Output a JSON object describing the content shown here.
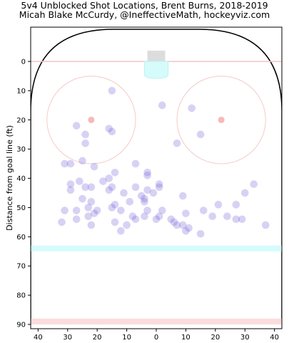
{
  "chart_data": {
    "type": "scatter",
    "title": "5v4 Unblocked Shot Locations, Brent Burns, 2018-2019",
    "subtitle": "Micah Blake McCurdy, @IneffectiveMath, hockeyviz.com",
    "ylabel": "Distance from goal line (ft)",
    "xlabel": "",
    "xlim": [
      42.5,
      -42.5
    ],
    "ylim": [
      0,
      90
    ],
    "x_ticks": [
      40,
      30,
      20,
      10,
      0,
      10,
      20,
      30,
      40
    ],
    "y_ticks": [
      0,
      10,
      20,
      30,
      40,
      50,
      60,
      70,
      80,
      90
    ],
    "grid": false,
    "point_color": "#6a5ad8",
    "points": [
      {
        "x": 15,
        "y": 10
      },
      {
        "x": -2,
        "y": 15
      },
      {
        "x": -12,
        "y": 16
      },
      {
        "x": 27,
        "y": 22
      },
      {
        "x": 15,
        "y": 24
      },
      {
        "x": 16,
        "y": 23
      },
      {
        "x": 24,
        "y": 25
      },
      {
        "x": -15,
        "y": 25
      },
      {
        "x": 24,
        "y": 28
      },
      {
        "x": -7,
        "y": 28
      },
      {
        "x": 31,
        "y": 35
      },
      {
        "x": 29,
        "y": 35
      },
      {
        "x": 25,
        "y": 34
      },
      {
        "x": 21,
        "y": 36
      },
      {
        "x": 7,
        "y": 35
      },
      {
        "x": 14,
        "y": 38
      },
      {
        "x": 3,
        "y": 38
      },
      {
        "x": 3,
        "y": 39
      },
      {
        "x": 16,
        "y": 40
      },
      {
        "x": -33,
        "y": 42
      },
      {
        "x": -1,
        "y": 42
      },
      {
        "x": 29,
        "y": 42
      },
      {
        "x": 26,
        "y": 41
      },
      {
        "x": 29,
        "y": 44
      },
      {
        "x": 24,
        "y": 43
      },
      {
        "x": 22,
        "y": 43
      },
      {
        "x": 18,
        "y": 41
      },
      {
        "x": 15,
        "y": 43
      },
      {
        "x": 7,
        "y": 43
      },
      {
        "x": 3,
        "y": 44
      },
      {
        "x": -1,
        "y": 43
      },
      {
        "x": 16,
        "y": 44
      },
      {
        "x": 11,
        "y": 45
      },
      {
        "x": 1,
        "y": 45
      },
      {
        "x": -30,
        "y": 45
      },
      {
        "x": 5,
        "y": 46
      },
      {
        "x": 4,
        "y": 47
      },
      {
        "x": -9,
        "y": 46
      },
      {
        "x": 25,
        "y": 47
      },
      {
        "x": 22,
        "y": 48
      },
      {
        "x": 14,
        "y": 49
      },
      {
        "x": 9,
        "y": 48
      },
      {
        "x": 4,
        "y": 48
      },
      {
        "x": -21,
        "y": 49
      },
      {
        "x": -27,
        "y": 49
      },
      {
        "x": 31,
        "y": 51
      },
      {
        "x": 27,
        "y": 51
      },
      {
        "x": 23,
        "y": 50
      },
      {
        "x": 20,
        "y": 51
      },
      {
        "x": 15,
        "y": 50
      },
      {
        "x": 12,
        "y": 51
      },
      {
        "x": 3,
        "y": 51
      },
      {
        "x": -2,
        "y": 51
      },
      {
        "x": -10,
        "y": 52
      },
      {
        "x": -16,
        "y": 51
      },
      {
        "x": -19,
        "y": 53
      },
      {
        "x": 23,
        "y": 53
      },
      {
        "x": 21,
        "y": 52
      },
      {
        "x": 8,
        "y": 53
      },
      {
        "x": 4,
        "y": 53
      },
      {
        "x": -1,
        "y": 53
      },
      {
        "x": -24,
        "y": 53
      },
      {
        "x": 32,
        "y": 55
      },
      {
        "x": 27,
        "y": 54
      },
      {
        "x": 14,
        "y": 55
      },
      {
        "x": 7,
        "y": 54
      },
      {
        "x": 0,
        "y": 54
      },
      {
        "x": -5,
        "y": 54
      },
      {
        "x": -6,
        "y": 55
      },
      {
        "x": -9,
        "y": 56
      },
      {
        "x": -11,
        "y": 57
      },
      {
        "x": -27,
        "y": 54
      },
      {
        "x": -29,
        "y": 54
      },
      {
        "x": 22,
        "y": 56
      },
      {
        "x": 10,
        "y": 56
      },
      {
        "x": -7,
        "y": 56
      },
      {
        "x": -37,
        "y": 56
      },
      {
        "x": 12,
        "y": 58
      },
      {
        "x": -10,
        "y": 58
      },
      {
        "x": -15,
        "y": 59
      }
    ]
  }
}
